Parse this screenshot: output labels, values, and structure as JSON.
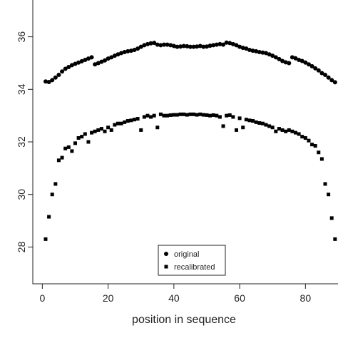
{
  "chart_data": {
    "type": "scatter",
    "xlabel": "position in sequence",
    "x": [
      1,
      2,
      3,
      4,
      5,
      6,
      7,
      8,
      9,
      10,
      11,
      12,
      13,
      14,
      15,
      16,
      17,
      18,
      19,
      20,
      21,
      22,
      23,
      24,
      25,
      26,
      27,
      28,
      29,
      30,
      31,
      32,
      33,
      34,
      35,
      36,
      37,
      38,
      39,
      40,
      41,
      42,
      43,
      44,
      45,
      46,
      47,
      48,
      49,
      50,
      51,
      52,
      53,
      54,
      55,
      56,
      57,
      58,
      59,
      60,
      61,
      62,
      63,
      64,
      65,
      66,
      67,
      68,
      69,
      70,
      71,
      72,
      73,
      74,
      75,
      76,
      77,
      78,
      79,
      80,
      81,
      82,
      83,
      84,
      85,
      86,
      87,
      88,
      89
    ],
    "series": [
      {
        "name": "original",
        "marker": "circle",
        "color": "#000000",
        "values": [
          34.3,
          34.28,
          34.35,
          34.45,
          34.55,
          34.68,
          34.78,
          34.85,
          34.92,
          34.97,
          35.02,
          35.07,
          35.12,
          35.17,
          35.22,
          34.95,
          35.0,
          35.05,
          35.1,
          35.17,
          35.22,
          35.28,
          35.33,
          35.38,
          35.42,
          35.45,
          35.47,
          35.5,
          35.55,
          35.62,
          35.68,
          35.72,
          35.75,
          35.77,
          35.7,
          35.68,
          35.7,
          35.7,
          35.68,
          35.65,
          35.62,
          35.63,
          35.65,
          35.64,
          35.62,
          35.62,
          35.63,
          35.65,
          35.62,
          35.63,
          35.66,
          35.68,
          35.7,
          35.72,
          35.7,
          35.78,
          35.76,
          35.72,
          35.68,
          35.62,
          35.58,
          35.55,
          35.5,
          35.47,
          35.45,
          35.42,
          35.4,
          35.38,
          35.33,
          35.28,
          35.22,
          35.15,
          35.08,
          35.03,
          35.0,
          35.22,
          35.18,
          35.12,
          35.08,
          35.02,
          34.95,
          34.88,
          34.8,
          34.72,
          34.62,
          34.55,
          34.45,
          34.35,
          34.27
        ]
      },
      {
        "name": "recalibrated",
        "marker": "square",
        "color": "#000000",
        "values": [
          28.3,
          29.15,
          30.0,
          30.4,
          31.3,
          31.4,
          31.75,
          31.8,
          31.65,
          31.95,
          32.15,
          32.2,
          32.3,
          32.0,
          32.35,
          32.4,
          32.45,
          32.5,
          32.4,
          32.55,
          32.45,
          32.65,
          32.7,
          32.7,
          32.75,
          32.8,
          32.82,
          32.85,
          32.88,
          32.45,
          32.95,
          33.0,
          32.95,
          33.0,
          32.55,
          33.05,
          33.0,
          33.0,
          33.02,
          33.03,
          33.03,
          33.05,
          33.05,
          33.03,
          33.05,
          33.05,
          33.03,
          33.05,
          33.03,
          33.02,
          33.0,
          33.02,
          33.0,
          32.95,
          32.6,
          33.0,
          33.02,
          32.95,
          32.45,
          32.9,
          32.55,
          32.85,
          32.82,
          32.8,
          32.75,
          32.72,
          32.7,
          32.65,
          32.6,
          32.55,
          32.4,
          32.5,
          32.45,
          32.4,
          32.45,
          32.4,
          32.35,
          32.3,
          32.2,
          32.15,
          32.05,
          31.9,
          31.85,
          31.6,
          31.35,
          30.4,
          30.0,
          29.1,
          28.3
        ]
      }
    ],
    "xlim": [
      -2.9,
      89.9
    ],
    "ylim": [
      26.6,
      37.4
    ],
    "xticks": [
      0,
      20,
      40,
      60,
      80
    ],
    "yticks": [
      28,
      30,
      32,
      34,
      36
    ],
    "legend": "bottom-center"
  }
}
